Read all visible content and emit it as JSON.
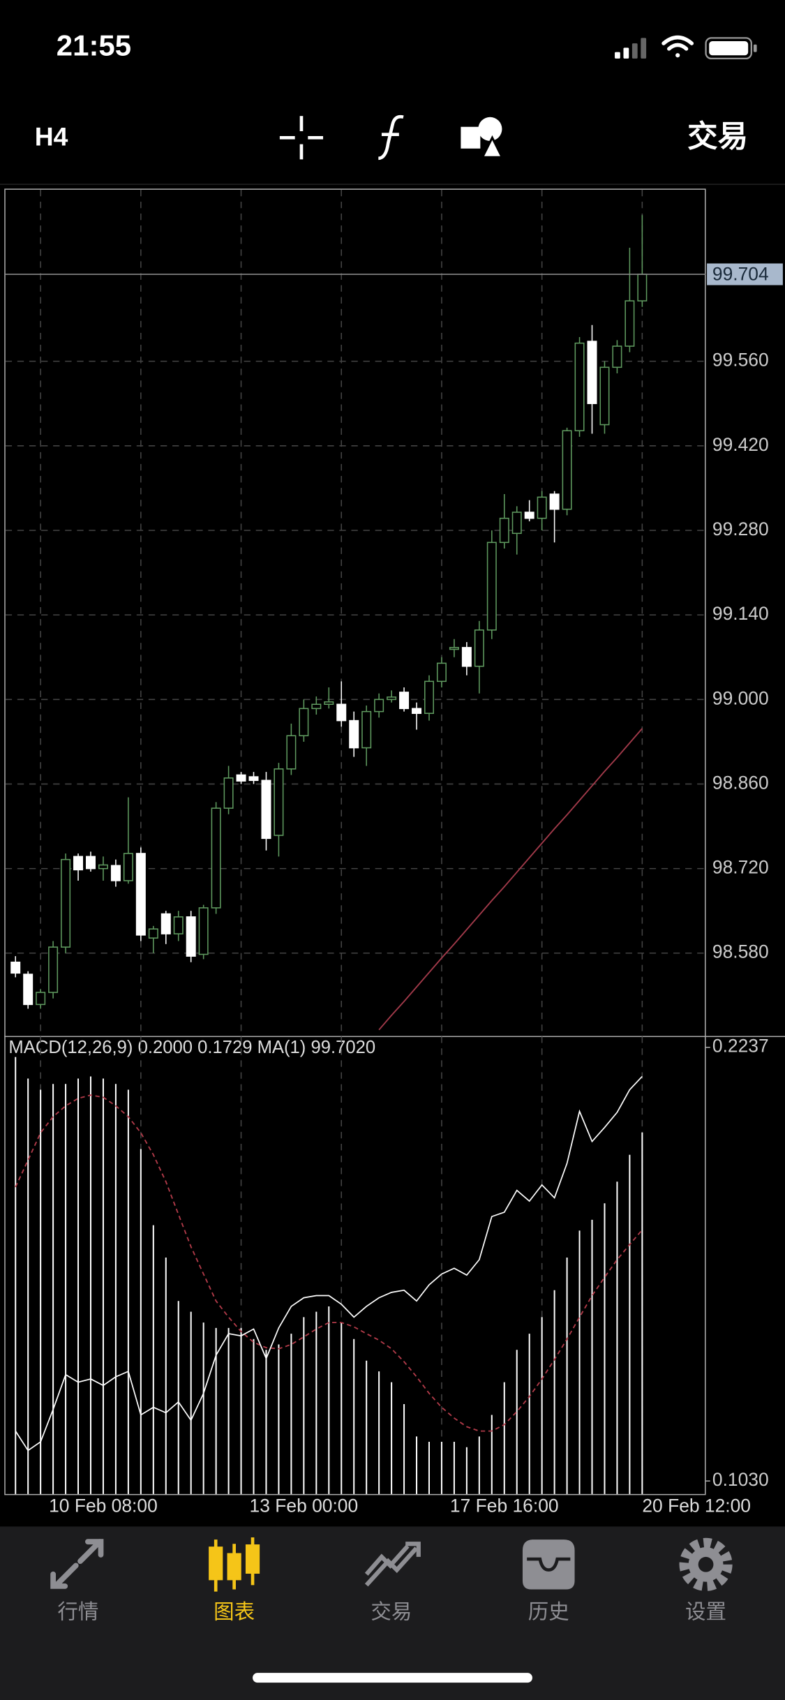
{
  "status_bar": {
    "time": "21:55"
  },
  "toolbar": {
    "timeframe": "H4",
    "trade": "交易"
  },
  "chart_data": {
    "type": "candlestick",
    "categories": [
      null,
      null,
      null,
      null,
      null,
      null,
      null,
      "10 Feb 08:00",
      null,
      null,
      null,
      null,
      null,
      null,
      null,
      null,
      null,
      null,
      null,
      null,
      null,
      null,
      null,
      "13 Feb 00:00",
      null,
      null,
      null,
      null,
      null,
      null,
      null,
      null,
      null,
      null,
      null,
      null,
      null,
      null,
      null,
      "17 Feb 16:00",
      null,
      null,
      null,
      null,
      null,
      null,
      null,
      null,
      null,
      null,
      "20 Feb 12:00"
    ],
    "open": [
      98.565,
      98.545,
      98.495,
      98.515,
      98.59,
      98.74,
      98.74,
      98.72,
      98.725,
      98.7,
      98.745,
      98.605,
      98.645,
      98.612,
      98.64,
      98.578,
      98.655,
      98.82,
      98.875,
      98.872,
      98.866,
      98.775,
      98.885,
      98.94,
      98.985,
      98.992,
      98.992,
      98.965,
      98.92,
      98.98,
      99.0,
      99.012,
      98.985,
      98.977,
      99.03,
      99.083,
      99.086,
      99.055,
      99.115,
      99.26,
      99.275,
      99.31,
      99.3,
      99.34,
      99.315,
      99.445,
      99.593,
      99.455,
      99.55,
      99.585,
      99.66
    ],
    "high": [
      98.575,
      98.55,
      98.52,
      98.6,
      98.745,
      98.745,
      98.748,
      98.74,
      98.735,
      98.838,
      98.755,
      98.625,
      98.65,
      98.65,
      98.65,
      98.66,
      98.83,
      98.89,
      98.88,
      98.88,
      98.88,
      98.895,
      98.96,
      99.0,
      99.005,
      99.02,
      99.03,
      98.98,
      98.99,
      99.01,
      99.015,
      99.02,
      98.995,
      99.04,
      99.07,
      99.1,
      99.095,
      99.13,
      99.28,
      99.34,
      99.32,
      99.33,
      99.345,
      99.345,
      99.45,
      99.6,
      99.62,
      99.56,
      99.595,
      99.748,
      99.802
    ],
    "low": [
      98.54,
      98.488,
      98.488,
      98.505,
      98.58,
      98.7,
      98.715,
      98.7,
      98.69,
      98.695,
      98.6,
      98.58,
      98.595,
      98.6,
      98.565,
      98.57,
      98.645,
      98.81,
      98.86,
      98.86,
      98.75,
      98.74,
      98.875,
      98.93,
      98.975,
      98.985,
      98.955,
      98.905,
      98.89,
      98.97,
      98.995,
      98.98,
      98.95,
      98.965,
      99.02,
      99.07,
      99.04,
      99.01,
      99.1,
      99.25,
      99.24,
      99.295,
      99.28,
      99.26,
      99.305,
      99.435,
      99.44,
      99.44,
      99.54,
      99.575,
      99.65
    ],
    "close": [
      98.547,
      98.495,
      98.515,
      98.59,
      98.735,
      98.718,
      98.72,
      98.726,
      98.7,
      98.745,
      98.61,
      98.62,
      98.612,
      98.64,
      98.575,
      98.655,
      98.82,
      98.87,
      98.865,
      98.866,
      98.77,
      98.885,
      98.94,
      98.985,
      98.992,
      98.996,
      98.965,
      98.92,
      98.98,
      99.0,
      99.004,
      98.985,
      98.977,
      99.03,
      99.06,
      99.086,
      99.055,
      99.115,
      99.26,
      99.3,
      99.31,
      99.3,
      99.335,
      99.315,
      99.445,
      99.59,
      99.49,
      99.55,
      99.585,
      99.66,
      99.704
    ],
    "up_color": "#5f9a5f",
    "down_color": "#ffffff",
    "ylim": [
      98.442,
      99.844
    ],
    "yticks": [
      {
        "value": 98.58,
        "label": "98.580"
      },
      {
        "value": 98.72,
        "label": "98.720"
      },
      {
        "value": 98.86,
        "label": "98.860"
      },
      {
        "value": 99,
        "label": "99.000"
      },
      {
        "value": 99.14,
        "label": "99.140"
      },
      {
        "value": 99.28,
        "label": "99.280"
      },
      {
        "value": 99.42,
        "label": "99.420"
      },
      {
        "value": 99.56,
        "label": "99.560"
      }
    ],
    "grid": true,
    "last_price": 99.704,
    "overlay": {
      "color": "#a23a4a",
      "values": [
        null,
        null,
        null,
        null,
        null,
        null,
        null,
        null,
        null,
        null,
        null,
        null,
        null,
        null,
        null,
        null,
        null,
        null,
        null,
        null,
        null,
        null,
        null,
        null,
        null,
        null,
        null,
        null,
        null,
        98.453,
        98.477,
        98.5,
        98.524,
        98.548,
        98.572,
        98.595,
        98.619,
        98.643,
        98.667,
        98.69,
        98.714,
        98.738,
        98.762,
        98.786,
        98.809,
        98.833,
        98.857,
        98.881,
        98.904,
        98.928,
        98.952
      ]
    },
    "indicator": {
      "label": "MACD(12,26,9) 0.2000 0.1729 MA(1) 99.7020",
      "ylim": [
        0.103,
        0.2237
      ],
      "yticks": [
        {
          "value": 0.103,
          "label": "0.1030"
        },
        0.2237
      ],
      "histogram": {
        "color": "#ffffff",
        "values": [
          0.221,
          0.215,
          0.2119,
          0.2135,
          0.2135,
          0.215,
          0.2156,
          0.215,
          0.2135,
          0.2119,
          0.1954,
          0.1742,
          0.1652,
          0.1531,
          0.1501,
          0.1471,
          0.1456,
          0.1456,
          0.1456,
          0.1425,
          0.1395,
          0.141,
          0.144,
          0.1486,
          0.1501,
          0.1516,
          0.1471,
          0.1425,
          0.1365,
          0.1335,
          0.1305,
          0.1244,
          0.1154,
          0.1139,
          0.1139,
          0.1139,
          0.1124,
          0.1154,
          0.1214,
          0.1305,
          0.1395,
          0.144,
          0.1486,
          0.1561,
          0.1652,
          0.1727,
          0.1757,
          0.1803,
          0.1863,
          0.1938,
          0.2
        ]
      },
      "signal": {
        "color": "#b03a48",
        "values": [
          0.1848,
          0.1923,
          0.1999,
          0.2044,
          0.2074,
          0.2095,
          0.2104,
          0.2098,
          0.2074,
          0.2044,
          0.1999,
          0.1938,
          0.1863,
          0.1772,
          0.1682,
          0.1606,
          0.1531,
          0.1486,
          0.1446,
          0.1416,
          0.1401,
          0.1398,
          0.141,
          0.1431,
          0.1453,
          0.1471,
          0.1471,
          0.1459,
          0.144,
          0.1422,
          0.1398,
          0.1362,
          0.132,
          0.1274,
          0.1235,
          0.1205,
          0.1181,
          0.1169,
          0.1169,
          0.1187,
          0.1223,
          0.1265,
          0.1314,
          0.1368,
          0.1425,
          0.1486,
          0.1546,
          0.1597,
          0.1646,
          0.1688,
          0.1729
        ]
      },
      "line": {
        "color": "#ffffff",
        "values": [
          0.1169,
          0.1115,
          0.1139,
          0.1229,
          0.1326,
          0.1305,
          0.1314,
          0.1296,
          0.132,
          0.1335,
          0.1214,
          0.1235,
          0.122,
          0.125,
          0.1199,
          0.1274,
          0.138,
          0.144,
          0.1434,
          0.1453,
          0.1371,
          0.1456,
          0.1516,
          0.154,
          0.1546,
          0.1546,
          0.1522,
          0.1486,
          0.1516,
          0.154,
          0.1555,
          0.1561,
          0.1531,
          0.1576,
          0.1606,
          0.1622,
          0.1603,
          0.1646,
          0.1766,
          0.1778,
          0.1839,
          0.1809,
          0.1854,
          0.1818,
          0.1914,
          0.2059,
          0.1975,
          0.2014,
          0.2056,
          0.2119,
          0.2156
        ]
      }
    }
  },
  "tab_bar": {
    "tabs": [
      {
        "label": "行情"
      },
      {
        "label": "图表",
        "active": true
      },
      {
        "label": "交易"
      },
      {
        "label": "历史"
      },
      {
        "label": "设置"
      }
    ]
  }
}
